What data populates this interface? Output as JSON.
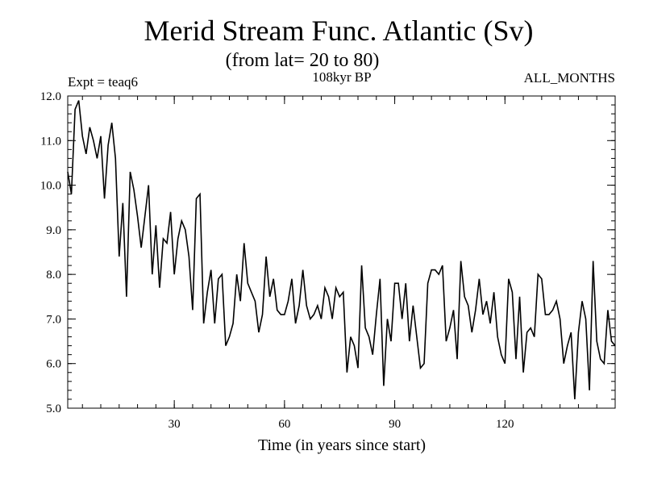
{
  "chart_data": {
    "type": "line",
    "title": "Merid Stream Func. Atlantic (Sv)",
    "subtitle": "(from lat= 20 to 80)",
    "annotations": {
      "left": "Expt = teaq6",
      "center": "108kyr BP",
      "right": "ALL_MONTHS"
    },
    "xlabel": "Time (in years since start)",
    "ylabel": "",
    "xlim": [
      1,
      150
    ],
    "ylim": [
      5.0,
      12.0
    ],
    "x_ticks": [
      30,
      60,
      90,
      120
    ],
    "x_tick_labels": [
      "30",
      "60",
      "90",
      "120"
    ],
    "y_ticks": [
      5,
      6,
      7,
      8,
      9,
      10,
      11,
      12
    ],
    "y_tick_labels": [
      "5.0",
      "6.0",
      "7.0",
      "8.0",
      "9.0",
      "10.0",
      "11.0",
      "12.0"
    ],
    "grid": false,
    "series": [
      {
        "name": "Merid Stream Func. Atlantic",
        "color": "#000000",
        "x_start": 1,
        "x_step": 1,
        "values": [
          10.3,
          9.8,
          11.7,
          11.9,
          11.1,
          10.7,
          11.3,
          11.0,
          10.6,
          11.1,
          9.7,
          10.9,
          11.4,
          10.6,
          8.4,
          9.6,
          7.5,
          10.3,
          9.9,
          9.3,
          8.6,
          9.3,
          10.0,
          8.0,
          9.1,
          7.7,
          8.8,
          8.7,
          9.4,
          8.0,
          8.8,
          9.2,
          9.0,
          8.4,
          7.2,
          9.7,
          9.8,
          6.9,
          7.6,
          8.1,
          6.9,
          7.9,
          8.0,
          6.4,
          6.6,
          6.9,
          8.0,
          7.4,
          8.7,
          7.8,
          7.6,
          7.4,
          6.7,
          7.1,
          8.4,
          7.5,
          7.9,
          7.2,
          7.1,
          7.1,
          7.4,
          7.9,
          6.9,
          7.3,
          8.1,
          7.3,
          7.0,
          7.1,
          7.3,
          7.0,
          7.7,
          7.5,
          7.0,
          7.7,
          7.5,
          7.6,
          5.8,
          6.6,
          6.4,
          5.9,
          8.2,
          6.8,
          6.6,
          6.2,
          7.1,
          7.9,
          5.5,
          7.0,
          6.5,
          7.8,
          7.8,
          7.0,
          7.8,
          6.5,
          7.3,
          6.6,
          5.9,
          6.0,
          7.8,
          8.1,
          8.1,
          8.0,
          8.2,
          6.5,
          6.8,
          7.2,
          6.1,
          8.3,
          7.5,
          7.3,
          6.7,
          7.2,
          7.9,
          7.1,
          7.4,
          6.9,
          7.6,
          6.6,
          6.2,
          6.0,
          7.9,
          7.6,
          6.1,
          7.5,
          5.8,
          6.7,
          6.8,
          6.6,
          8.0,
          7.9,
          7.1,
          7.1,
          7.2,
          7.4,
          7.0,
          6.0,
          6.4,
          6.7,
          5.2,
          6.7,
          7.4,
          7.0,
          5.4,
          8.3,
          6.5,
          6.1,
          6.0,
          7.2,
          6.5,
          6.4
        ]
      }
    ]
  }
}
